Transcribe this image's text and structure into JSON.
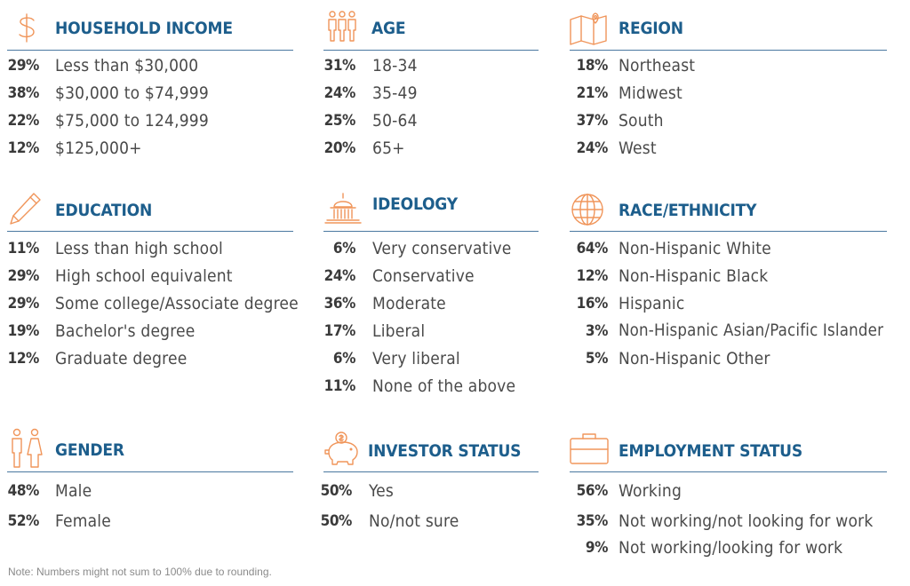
{
  "sections": {
    "household_income": {
      "title": "HOUSEHOLD INCOME",
      "rows": [
        {
          "pct": "29%",
          "label": "Less than $30,000"
        },
        {
          "pct": "38%",
          "label": "$30,000 to $74,999"
        },
        {
          "pct": "22%",
          "label": "$75,000 to 124,999"
        },
        {
          "pct": "12%",
          "label": "$125,000+"
        }
      ]
    },
    "age": {
      "title": "AGE",
      "rows": [
        {
          "pct": "31%",
          "label": "18-34"
        },
        {
          "pct": "24%",
          "label": "35-49"
        },
        {
          "pct": "25%",
          "label": "50-64"
        },
        {
          "pct": "20%",
          "label": "65+"
        }
      ]
    },
    "region": {
      "title": "REGION",
      "rows": [
        {
          "pct": "18%",
          "label": "Northeast"
        },
        {
          "pct": "21%",
          "label": "Midwest"
        },
        {
          "pct": "37%",
          "label": "South"
        },
        {
          "pct": "24%",
          "label": "West"
        }
      ]
    },
    "education": {
      "title": "EDUCATION",
      "rows": [
        {
          "pct": "11%",
          "label": "Less than high school"
        },
        {
          "pct": "29%",
          "label": "High school equivalent"
        },
        {
          "pct": "29%",
          "label": "Some college/Associate degree"
        },
        {
          "pct": "19%",
          "label": "Bachelor's degree"
        },
        {
          "pct": "12%",
          "label": "Graduate degree"
        }
      ]
    },
    "ideology": {
      "title": "IDEOLOGY",
      "rows": [
        {
          "pct": "6%",
          "label": "Very conservative"
        },
        {
          "pct": "24%",
          "label": "Conservative"
        },
        {
          "pct": "36%",
          "label": "Moderate"
        },
        {
          "pct": "17%",
          "label": "Liberal"
        },
        {
          "pct": "6%",
          "label": "Very liberal"
        },
        {
          "pct": "11%",
          "label": "None of the above"
        }
      ]
    },
    "race_ethnicity": {
      "title": "RACE/ETHNICITY",
      "rows": [
        {
          "pct": "64%",
          "label": "Non-Hispanic White"
        },
        {
          "pct": "12%",
          "label": "Non-Hispanic Black"
        },
        {
          "pct": "16%",
          "label": "Hispanic"
        },
        {
          "pct": "3%",
          "label": "Non-Hispanic Asian/Pacific Islander"
        },
        {
          "pct": "5%",
          "label": "Non-Hispanic Other"
        }
      ]
    },
    "gender": {
      "title": "GENDER",
      "rows": [
        {
          "pct": "48%",
          "label": "Male"
        },
        {
          "pct": "52%",
          "label": "Female"
        }
      ]
    },
    "investor_status": {
      "title": "INVESTOR STATUS",
      "rows": [
        {
          "pct": "50%",
          "label": "Yes"
        },
        {
          "pct": "50%",
          "label": "No/not sure"
        }
      ]
    },
    "employment_status": {
      "title": "EMPLOYMENT STATUS",
      "rows": [
        {
          "pct": "56%",
          "label": "Working"
        },
        {
          "pct": "35%",
          "label": "Not working/not looking for work"
        },
        {
          "pct": "9%",
          "label": "Not working/looking for work"
        }
      ]
    }
  },
  "note": "Note: Numbers might not sum to 100% due to rounding.",
  "colors": {
    "title": "#1d5e8c",
    "icon": "#f0955a",
    "rule": "#4a78a0"
  },
  "icons": {
    "household_income": "dollar-icon",
    "age": "people-icon",
    "region": "map-icon",
    "education": "pencil-icon",
    "ideology": "capitol-icon",
    "race_ethnicity": "globe-icon",
    "gender": "gender-icon",
    "investor_status": "piggy-bank-icon",
    "employment_status": "briefcase-icon"
  }
}
